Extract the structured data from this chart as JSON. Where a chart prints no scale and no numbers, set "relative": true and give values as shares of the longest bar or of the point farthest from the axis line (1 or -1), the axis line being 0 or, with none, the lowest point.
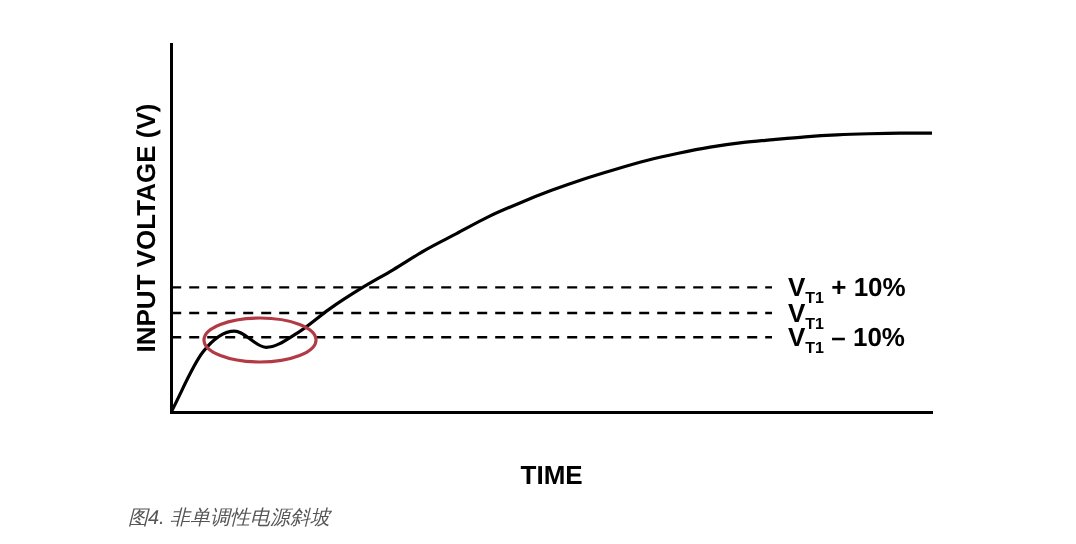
{
  "chart_data": {
    "type": "line",
    "relative": true,
    "xlabel": "TIME",
    "ylabel": "INPUT VOLTAGE (V)",
    "annotations": [
      "图4. 非单调性电源斜坡"
    ],
    "categories": [
      null,
      null,
      null,
      null,
      null,
      null,
      null,
      null,
      null,
      null,
      null,
      null,
      null,
      null,
      null,
      null,
      null,
      null,
      null,
      null,
      null,
      null,
      null,
      null,
      null
    ],
    "grid": false,
    "legend": false,
    "marker": "none",
    "line_style": "solid",
    "series": [
      {
        "color": "#000000",
        "values": [
          0,
          0.215,
          0.29,
          0.232,
          0.285,
          0.37,
          0.444,
          0.51,
          0.58,
          0.64,
          0.7,
          0.75,
          0.795,
          0.835,
          0.87,
          0.902,
          0.928,
          0.95,
          0.966,
          0.977,
          0.987,
          0.994,
          0.998,
          1,
          1
        ]
      }
    ],
    "ref_lines": [
      {
        "axis": "y",
        "value": 0.447,
        "label": "V$_{T1}$ + 10%",
        "color": "#000000",
        "line_style": "dashed"
      },
      {
        "axis": "y",
        "value": 0.355,
        "label": "V$_{T1}$",
        "color": "#000000",
        "line_style": "dashed"
      },
      {
        "axis": "y",
        "value": 0.268,
        "label": "V$_{T1}$ – 10%",
        "color": "#000000",
        "line_style": "dashed"
      }
    ]
  }
}
